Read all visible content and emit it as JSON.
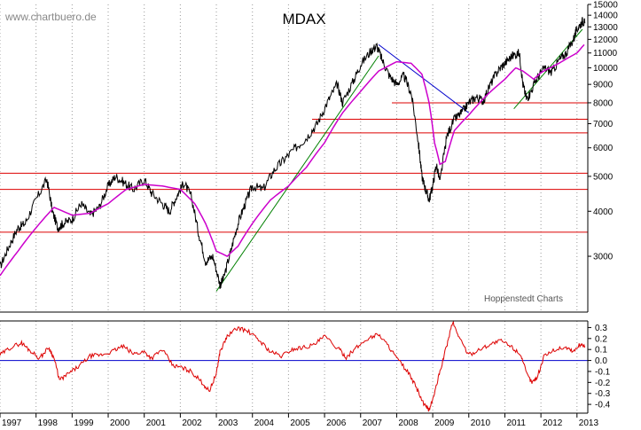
{
  "watermark": "www.chartbuero.de",
  "source": "Hoppenstedt Charts",
  "chart_data": [
    {
      "type": "line",
      "title": "MDAX",
      "scale": "log",
      "ylim": [
        2100,
        15000
      ],
      "xlim": [
        1997.0,
        2013.3
      ],
      "grid": "vertical dotted",
      "y_ticks": [
        3000,
        4000,
        5000,
        6000,
        7000,
        8000,
        9000,
        10000,
        11000,
        12000,
        13000,
        14000,
        15000
      ],
      "x_ticks": [
        "1997",
        "1998",
        "1999",
        "2000",
        "2001",
        "2002",
        "2003",
        "2004",
        "2005",
        "2006",
        "2007",
        "2008",
        "2009",
        "2010",
        "2011",
        "2012",
        "2013"
      ],
      "series": [
        {
          "role": "price",
          "color": "#000000",
          "x": [
            1997.0,
            1997.25,
            1997.5,
            1997.7,
            1998.0,
            1998.3,
            1998.45,
            1998.6,
            1998.75,
            1999.0,
            1999.25,
            1999.5,
            1999.75,
            2000.0,
            2000.2,
            2000.45,
            2000.7,
            2001.0,
            2001.2,
            2001.5,
            2001.7,
            2001.9,
            2002.1,
            2002.3,
            2002.5,
            2002.7,
            2002.9,
            2003.1,
            2003.2,
            2003.4,
            2003.6,
            2003.8,
            2004.0,
            2004.3,
            2004.6,
            2004.9,
            2005.2,
            2005.5,
            2005.8,
            2006.1,
            2006.35,
            2006.5,
            2006.8,
            2007.0,
            2007.3,
            2007.45,
            2007.6,
            2007.8,
            2008.0,
            2008.2,
            2008.4,
            2008.6,
            2008.7,
            2008.8,
            2008.9,
            2009.0,
            2009.1,
            2009.2,
            2009.4,
            2009.6,
            2009.8,
            2010.0,
            2010.2,
            2010.4,
            2010.6,
            2010.8,
            2011.0,
            2011.2,
            2011.4,
            2011.5,
            2011.6,
            2011.7,
            2011.9,
            2012.1,
            2012.3,
            2012.5,
            2012.7,
            2012.9,
            2013.0,
            2013.15,
            2013.22
          ],
          "values": [
            2800,
            3200,
            3600,
            3700,
            4300,
            4900,
            4000,
            3600,
            3700,
            3800,
            4200,
            3900,
            4100,
            4700,
            5000,
            4800,
            4600,
            4900,
            4500,
            4200,
            4000,
            4400,
            4800,
            4400,
            3500,
            2900,
            3000,
            2500,
            2600,
            3100,
            3700,
            4200,
            4700,
            4600,
            5200,
            5600,
            6000,
            6400,
            7000,
            8100,
            9000,
            8000,
            9200,
            10200,
            11200,
            11500,
            10500,
            9500,
            9000,
            9500,
            8500,
            6200,
            5000,
            4600,
            4300,
            4700,
            5400,
            4800,
            6500,
            7200,
            7500,
            8000,
            8300,
            8100,
            9000,
            9800,
            10300,
            10800,
            11000,
            9000,
            8200,
            8500,
            9400,
            10000,
            9700,
            10500,
            11000,
            12000,
            12800,
            13500,
            13300
          ]
        },
        {
          "role": "moving average",
          "color": "#cc00cc",
          "x": [
            1997.0,
            1997.5,
            1998.0,
            1998.5,
            1999.0,
            1999.5,
            2000.0,
            2000.5,
            2001.0,
            2001.5,
            2002.0,
            2002.4,
            2002.7,
            2003.0,
            2003.3,
            2003.6,
            2004.0,
            2004.5,
            2005.0,
            2005.5,
            2006.0,
            2006.5,
            2007.0,
            2007.5,
            2008.0,
            2008.4,
            2008.7,
            2008.9,
            2009.05,
            2009.2,
            2009.35,
            2009.6,
            2010.0,
            2010.5,
            2011.0,
            2011.3,
            2011.5,
            2011.8,
            2012.0,
            2012.5,
            2013.0,
            2013.2
          ],
          "values": [
            2650,
            3100,
            3600,
            4100,
            3900,
            3950,
            4200,
            4600,
            4750,
            4700,
            4600,
            4200,
            3700,
            3100,
            3000,
            3200,
            3700,
            4300,
            4700,
            5300,
            6200,
            7500,
            8600,
            9800,
            10400,
            10300,
            9600,
            8000,
            6200,
            5400,
            5500,
            6700,
            7400,
            8400,
            9300,
            10000,
            9800,
            9300,
            9700,
            10300,
            11000,
            11600
          ]
        }
      ],
      "horizontal_lines": [
        3500,
        4600,
        5100,
        6600,
        7200,
        8000
      ],
      "trend_lines": [
        {
          "color": "#008000",
          "x": [
            2003.0,
            2007.5
          ],
          "values": [
            2400,
            10800
          ]
        },
        {
          "color": "#0000cc",
          "x": [
            2007.5,
            2010.0
          ],
          "values": [
            11600,
            7500
          ]
        },
        {
          "color": "#008000",
          "x": [
            2011.25,
            2013.15
          ],
          "values": [
            7700,
            12800
          ]
        }
      ]
    },
    {
      "type": "line",
      "role": "oscillator",
      "ylim": [
        -0.48,
        0.36
      ],
      "y_ticks": [
        0.3,
        0.2,
        0.1,
        0.0,
        -0.1,
        -0.2,
        -0.3,
        -0.4
      ],
      "y_tick_labels": [
        "0.3",
        "0.2",
        "0.1",
        "0.0",
        "-0.1",
        "-0.2",
        "-0.3",
        "-0.4"
      ],
      "zero_line_color": "#0000cc",
      "series": [
        {
          "color": "#dd0000",
          "x": [
            1997.0,
            1997.3,
            1997.6,
            1997.8,
            1998.1,
            1998.35,
            1998.5,
            1998.65,
            1998.9,
            1999.2,
            1999.5,
            1999.8,
            2000.1,
            2000.4,
            2000.7,
            2001.0,
            2001.2,
            2001.5,
            2001.8,
            2002.0,
            2002.3,
            2002.6,
            2002.8,
            2003.0,
            2003.1,
            2003.3,
            2003.6,
            2003.9,
            2004.2,
            2004.5,
            2004.8,
            2005.1,
            2005.4,
            2005.7,
            2006.0,
            2006.4,
            2006.6,
            2006.9,
            2007.2,
            2007.5,
            2007.8,
            2008.0,
            2008.3,
            2008.55,
            2008.75,
            2008.9,
            2009.05,
            2009.2,
            2009.4,
            2009.55,
            2009.75,
            2010.0,
            2010.3,
            2010.6,
            2010.9,
            2011.2,
            2011.45,
            2011.6,
            2011.75,
            2011.9,
            2012.1,
            2012.4,
            2012.7,
            2012.9,
            2013.1,
            2013.22
          ],
          "values": [
            0.05,
            0.12,
            0.16,
            0.1,
            0.02,
            0.12,
            0.02,
            -0.18,
            -0.12,
            -0.05,
            0.04,
            0.05,
            0.08,
            0.13,
            0.06,
            0.08,
            0.02,
            0.1,
            -0.05,
            -0.06,
            -0.1,
            -0.2,
            -0.28,
            -0.12,
            0.08,
            0.22,
            0.3,
            0.26,
            0.18,
            0.08,
            0.04,
            0.1,
            0.12,
            0.14,
            0.22,
            0.1,
            0.03,
            0.12,
            0.2,
            0.24,
            0.12,
            0.02,
            -0.1,
            -0.25,
            -0.4,
            -0.45,
            -0.3,
            -0.1,
            0.15,
            0.35,
            0.2,
            0.05,
            0.1,
            0.15,
            0.18,
            0.12,
            0.05,
            -0.12,
            -0.2,
            -0.15,
            0.05,
            0.1,
            0.12,
            0.08,
            0.15,
            0.13
          ]
        }
      ]
    }
  ]
}
